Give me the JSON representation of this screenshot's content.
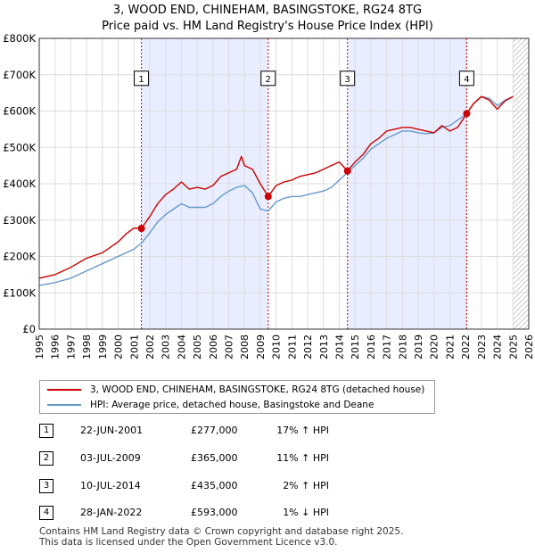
{
  "chart_data": {
    "type": "line",
    "title": "3, WOOD END, CHINEHAM, BASINGSTOKE, RG24 8TG",
    "subtitle": "Price paid vs. HM Land Registry's House Price Index (HPI)",
    "xlim": [
      1995,
      2026
    ],
    "ylim": [
      0,
      800000
    ],
    "y_ticks": [
      0,
      100000,
      200000,
      300000,
      400000,
      500000,
      600000,
      700000,
      800000
    ],
    "y_tick_labels": [
      "£0",
      "£100K",
      "£200K",
      "£300K",
      "£400K",
      "£500K",
      "£600K",
      "£700K",
      "£800K"
    ],
    "x_ticks": [
      1995,
      1996,
      1997,
      1998,
      1999,
      2000,
      2001,
      2002,
      2003,
      2004,
      2005,
      2006,
      2007,
      2008,
      2009,
      2010,
      2011,
      2012,
      2013,
      2014,
      2015,
      2016,
      2017,
      2018,
      2019,
      2020,
      2021,
      2022,
      2023,
      2024,
      2025,
      2026
    ],
    "x_tick_labels": [
      "1995",
      "1996",
      "1997",
      "1998",
      "1999",
      "2000",
      "2001",
      "2002",
      "2003",
      "2004",
      "2005",
      "2006",
      "2007",
      "2008",
      "2009",
      "2010",
      "2011",
      "2012",
      "2013",
      "2014",
      "2015",
      "2016",
      "2017",
      "2018",
      "2019",
      "2020",
      "2021",
      "2022",
      "2023",
      "2024",
      "2025",
      "2026"
    ],
    "series": [
      {
        "name": "3, WOOD END, CHINEHAM, BASINGSTOKE, RG24 8TG (detached house)",
        "color": "#cc0000",
        "x": [
          1995.0,
          1996.0,
          1997.0,
          1998.0,
          1999.0,
          2000.0,
          2000.5,
          2001.0,
          2001.47,
          2002.0,
          2002.5,
          2003.0,
          2003.5,
          2004.0,
          2004.5,
          2005.0,
          2005.5,
          2006.0,
          2006.5,
          2007.0,
          2007.5,
          2007.8,
          2008.0,
          2008.5,
          2009.0,
          2009.5,
          2010.0,
          2010.5,
          2011.0,
          2011.5,
          2012.0,
          2012.5,
          2013.0,
          2013.5,
          2014.0,
          2014.52,
          2015.0,
          2015.5,
          2016.0,
          2016.5,
          2017.0,
          2017.5,
          2018.0,
          2018.5,
          2019.0,
          2019.5,
          2020.0,
          2020.5,
          2021.0,
          2021.5,
          2022.07,
          2022.5,
          2023.0,
          2023.5,
          2024.0,
          2024.5,
          2025.0
        ],
        "y": [
          140000,
          150000,
          170000,
          195000,
          210000,
          240000,
          262000,
          278000,
          277000,
          310000,
          345000,
          370000,
          385000,
          405000,
          385000,
          390000,
          385000,
          395000,
          420000,
          430000,
          440000,
          475000,
          450000,
          440000,
          400000,
          365000,
          395000,
          405000,
          410000,
          420000,
          425000,
          430000,
          440000,
          450000,
          460000,
          435000,
          460000,
          480000,
          510000,
          525000,
          545000,
          550000,
          555000,
          555000,
          550000,
          545000,
          540000,
          560000,
          545000,
          555000,
          593000,
          620000,
          640000,
          630000,
          605000,
          628000,
          640000
        ]
      },
      {
        "name": "HPI: Average price, detached house, Basingstoke and Deane",
        "color": "#6699cc",
        "x": [
          1995.0,
          1996.0,
          1997.0,
          1998.0,
          1999.0,
          2000.0,
          2001.0,
          2001.5,
          2002.0,
          2002.5,
          2003.0,
          2003.5,
          2004.0,
          2004.5,
          2005.0,
          2005.5,
          2006.0,
          2006.5,
          2007.0,
          2007.5,
          2008.0,
          2008.5,
          2009.0,
          2009.5,
          2010.0,
          2010.5,
          2011.0,
          2011.5,
          2012.0,
          2012.5,
          2013.0,
          2013.5,
          2014.0,
          2014.5,
          2015.0,
          2015.5,
          2016.0,
          2016.5,
          2017.0,
          2017.5,
          2018.0,
          2018.5,
          2019.0,
          2019.5,
          2020.0,
          2020.5,
          2021.0,
          2021.5,
          2022.0,
          2022.5,
          2023.0,
          2023.5,
          2024.0,
          2024.5,
          2025.0
        ],
        "y": [
          120000,
          128000,
          140000,
          160000,
          180000,
          200000,
          220000,
          238000,
          265000,
          295000,
          315000,
          330000,
          345000,
          335000,
          335000,
          335000,
          345000,
          365000,
          380000,
          390000,
          395000,
          375000,
          330000,
          325000,
          350000,
          360000,
          365000,
          365000,
          370000,
          375000,
          380000,
          390000,
          410000,
          430000,
          450000,
          470000,
          495000,
          510000,
          525000,
          535000,
          545000,
          545000,
          540000,
          538000,
          540000,
          555000,
          560000,
          575000,
          590000,
          620000,
          640000,
          635000,
          615000,
          630000,
          640000
        ]
      }
    ],
    "shaded_periods": [
      {
        "from": 2001.47,
        "to": 2009.5
      },
      {
        "from": 2014.52,
        "to": 2022.07
      }
    ],
    "hatched_region": {
      "from": 2025.0,
      "to": 2026.0
    },
    "transactions": [
      {
        "id": "1",
        "x": 2001.47,
        "y": 277000
      },
      {
        "id": "2",
        "x": 2009.5,
        "y": 365000
      },
      {
        "id": "3",
        "x": 2014.52,
        "y": 435000
      },
      {
        "id": "4",
        "x": 2022.07,
        "y": 593000
      }
    ],
    "marker_y": 690000
  },
  "legend": {
    "property_label": "3, WOOD END, CHINEHAM, BASINGSTOKE, RG24 8TG (detached house)",
    "hpi_label": "HPI: Average price, detached house, Basingstoke and Deane",
    "property_color": "#cc0000",
    "hpi_color": "#6699cc"
  },
  "table": [
    {
      "num": "1",
      "date": "22-JUN-2001",
      "price": "£277,000",
      "hpi": "17% ↑ HPI"
    },
    {
      "num": "2",
      "date": "03-JUL-2009",
      "price": "£365,000",
      "hpi": "11% ↑ HPI"
    },
    {
      "num": "3",
      "date": "10-JUL-2014",
      "price": "£435,000",
      "hpi": "2% ↑ HPI"
    },
    {
      "num": "4",
      "date": "28-JAN-2022",
      "price": "£593,000",
      "hpi": "1% ↓ HPI"
    }
  ],
  "footer": {
    "line1": "Contains HM Land Registry data © Crown copyright and database right 2025.",
    "line2": "This data is licensed under the Open Government Licence v3.0."
  }
}
